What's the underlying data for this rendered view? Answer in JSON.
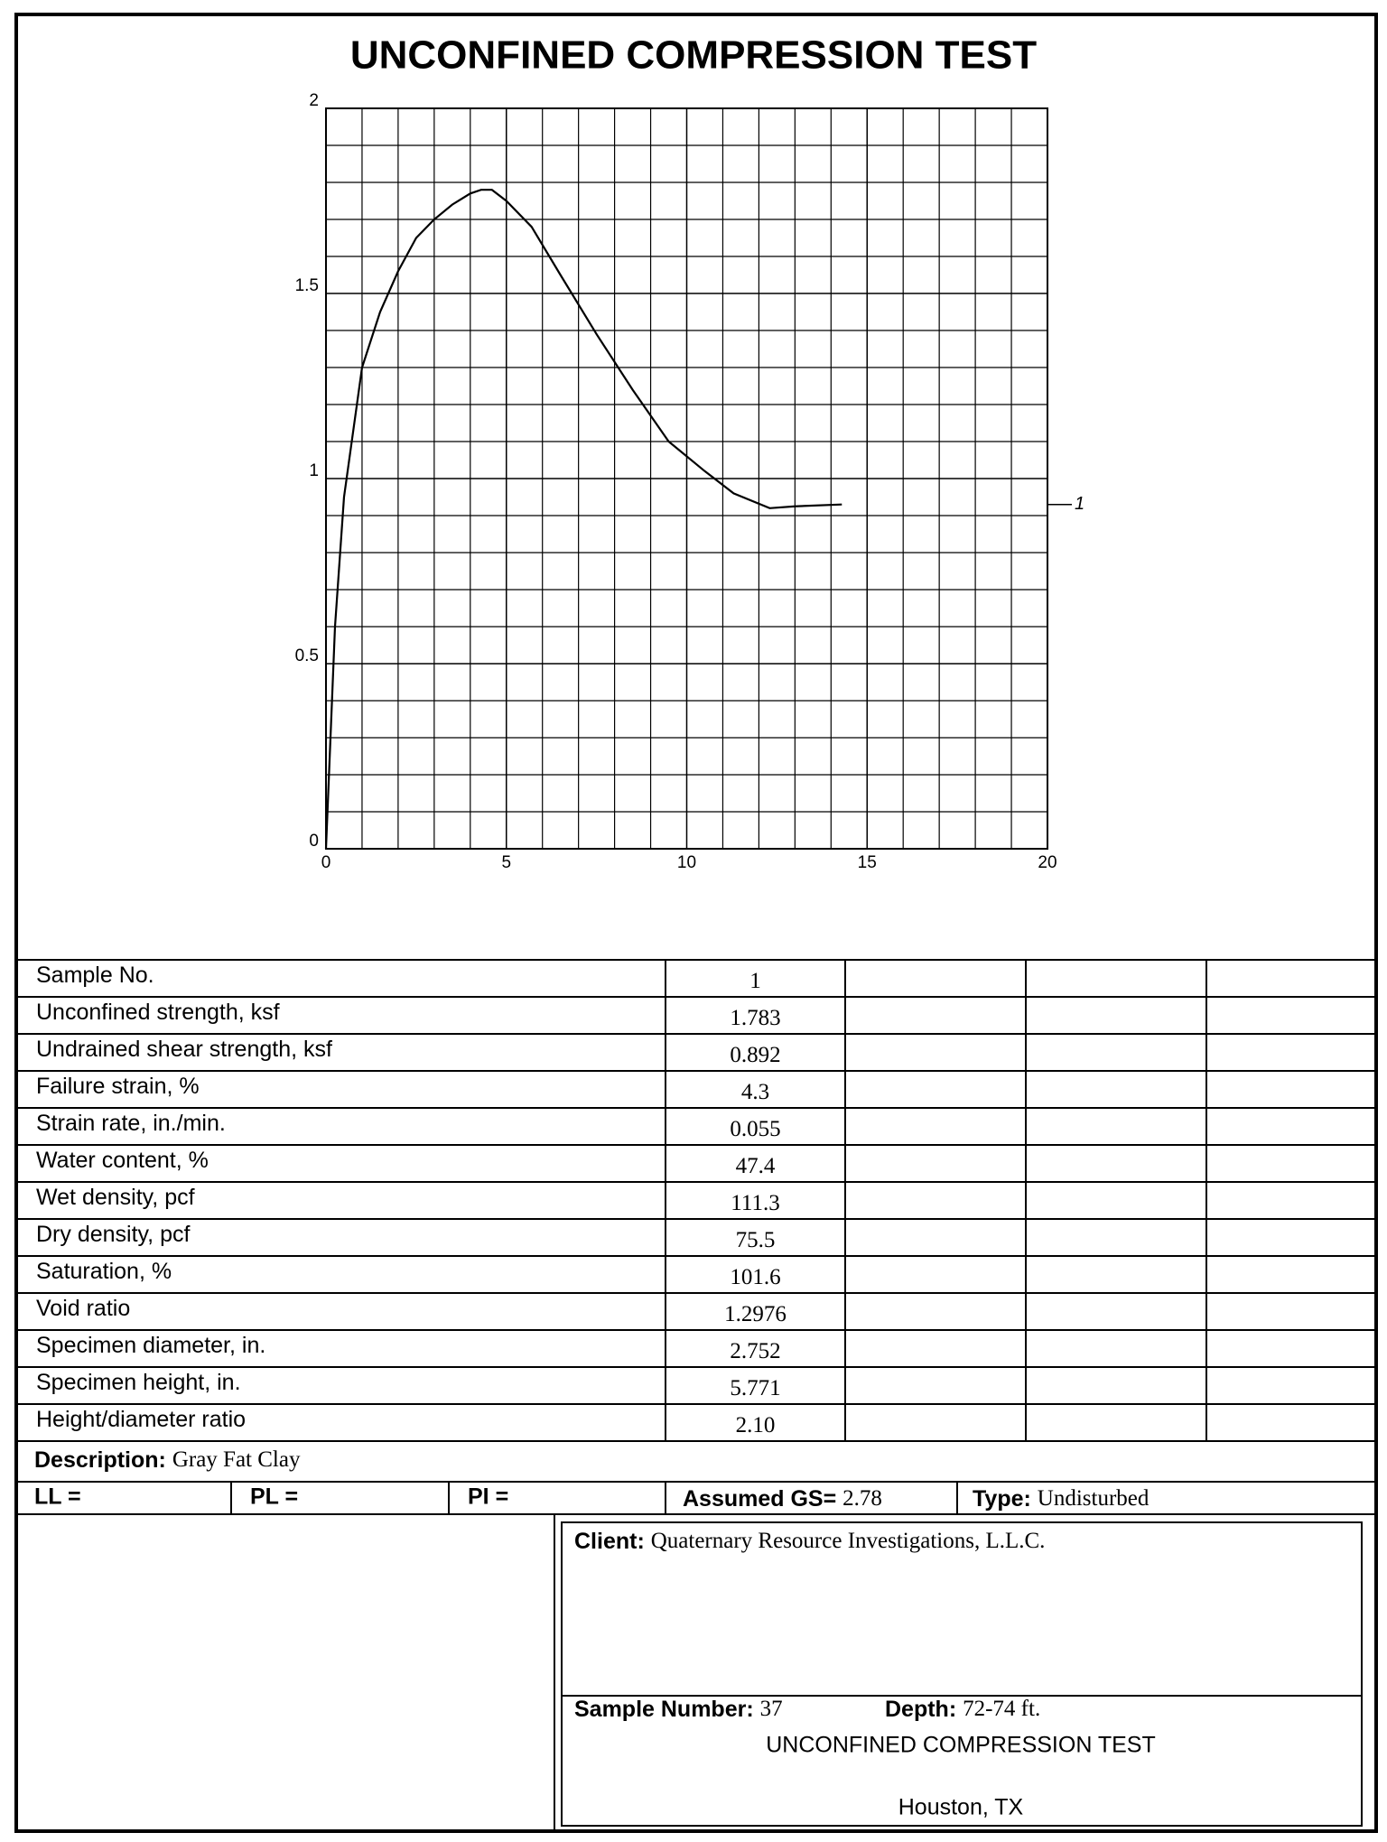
{
  "chart_data": {
    "type": "line",
    "title": "UNCONFINED COMPRESSION TEST",
    "x": [
      0,
      0.25,
      0.5,
      1,
      1.5,
      2,
      2.5,
      3,
      3.5,
      4,
      4.3,
      4.6,
      5,
      5.7,
      6.5,
      7.5,
      8.5,
      9.5,
      10.5,
      11.3,
      12.3,
      13,
      14.3
    ],
    "series": [
      {
        "name": "1",
        "color": "#000000",
        "values": [
          0,
          0.6,
          0.95,
          1.3,
          1.45,
          1.56,
          1.65,
          1.7,
          1.74,
          1.77,
          1.78,
          1.78,
          1.75,
          1.68,
          1.55,
          1.39,
          1.24,
          1.1,
          1.02,
          0.96,
          0.92,
          0.925,
          0.93
        ]
      }
    ],
    "xlim": [
      0,
      20
    ],
    "xticks": [
      0,
      5,
      10,
      15,
      20
    ],
    "ylim": [
      0,
      2
    ],
    "yticks": [
      0,
      0.5,
      1,
      1.5,
      2
    ],
    "grid": true
  },
  "table": {
    "rows": [
      [
        "Sample No.",
        "1"
      ],
      [
        "Unconfined strength, ksf",
        "1.783"
      ],
      [
        "Undrained shear strength, ksf",
        "0.892"
      ],
      [
        "Failure strain, %",
        "4.3"
      ],
      [
        "Strain rate, in./min.",
        "0.055"
      ],
      [
        "Water content, %",
        "47.4"
      ],
      [
        "Wet density, pcf",
        "111.3"
      ],
      [
        "Dry density, pcf",
        "75.5"
      ],
      [
        "Saturation, %",
        "101.6"
      ],
      [
        "Void ratio",
        "1.2976"
      ],
      [
        "Specimen diameter, in.",
        "2.752"
      ],
      [
        "Specimen height, in.",
        "5.771"
      ],
      [
        "Height/diameter ratio",
        "2.10"
      ]
    ]
  },
  "description": {
    "label": "Description:",
    "value": "Gray Fat Clay"
  },
  "limits": [
    "LL =",
    "PL =",
    "PI ="
  ],
  "gs": {
    "label": "Assumed GS=",
    "value": "2.78"
  },
  "sample_type": {
    "label": "Type:",
    "value": "Undisturbed"
  },
  "client": {
    "label": "Client:",
    "value": "Quaternary Resource Investigations, L.L.C."
  },
  "sample_number": {
    "label": "Sample Number:",
    "value": "37"
  },
  "depth": {
    "label": "Depth:",
    "value": "72-74 ft."
  },
  "footer": {
    "title": "UNCONFINED COMPRESSION TEST",
    "location": "Houston, TX"
  }
}
